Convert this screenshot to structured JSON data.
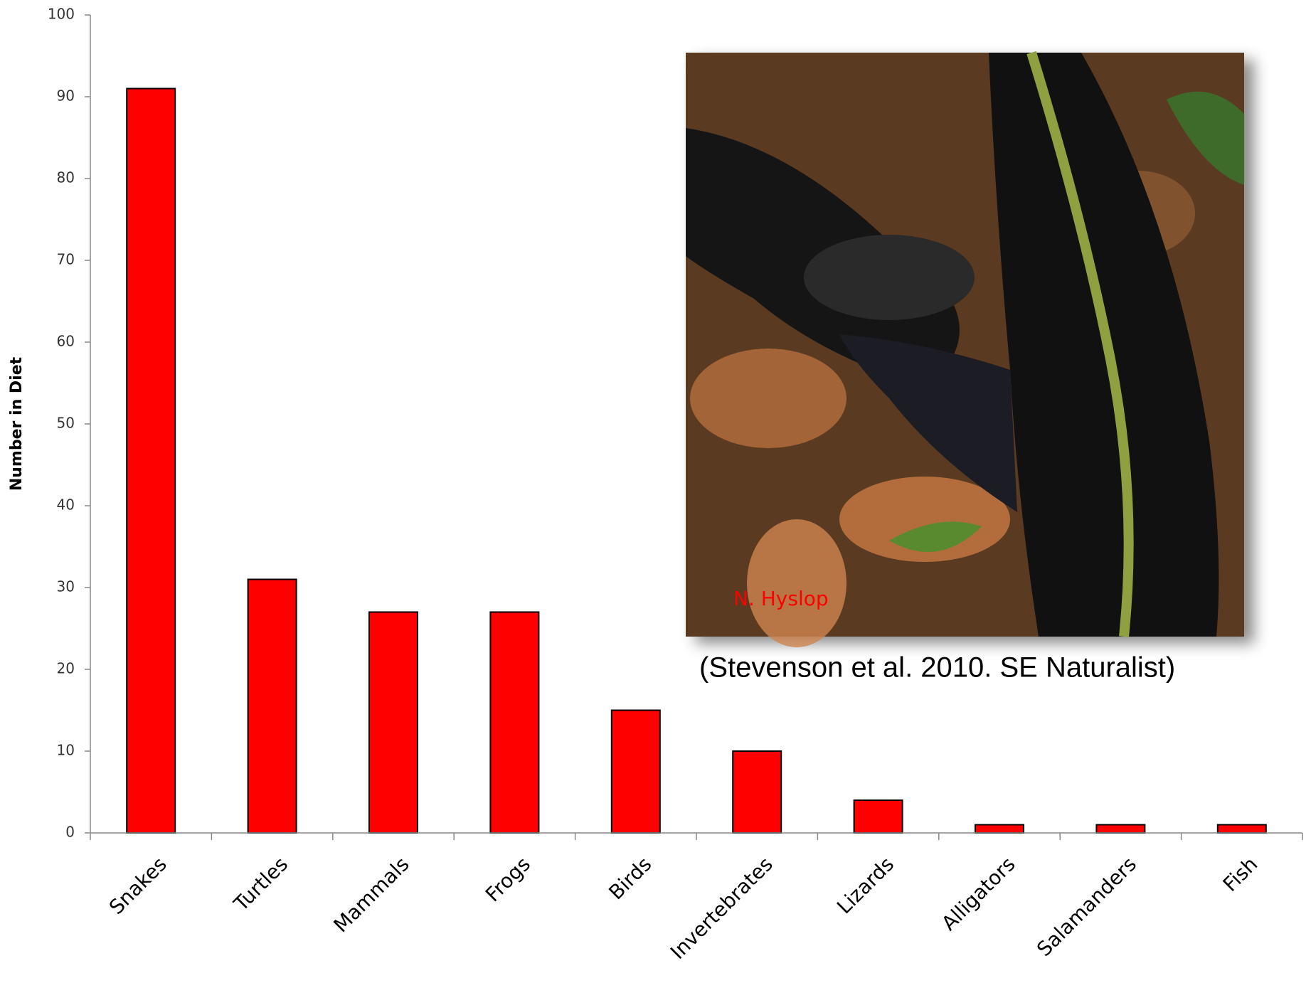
{
  "chart_data": {
    "type": "bar",
    "y_label": "Number in Diet",
    "categories": [
      "Snakes",
      "Turtles",
      "Mammals",
      "Frogs",
      "Birds",
      "Invertebrates",
      "Lizards",
      "Alligators",
      "Salamanders",
      "Fish"
    ],
    "values": [
      91,
      31,
      27,
      27,
      15,
      10,
      4,
      1,
      1,
      1
    ],
    "color": "#ff0000",
    "ylim": [
      0,
      100
    ],
    "yticks": [
      0,
      10,
      20,
      30,
      40,
      50,
      60,
      70,
      80,
      90,
      100
    ],
    "grid": false,
    "annotations": {
      "photo_credit": "N. Hyslop",
      "citation": "(Stevenson et al. 2010. SE Naturalist)"
    }
  }
}
